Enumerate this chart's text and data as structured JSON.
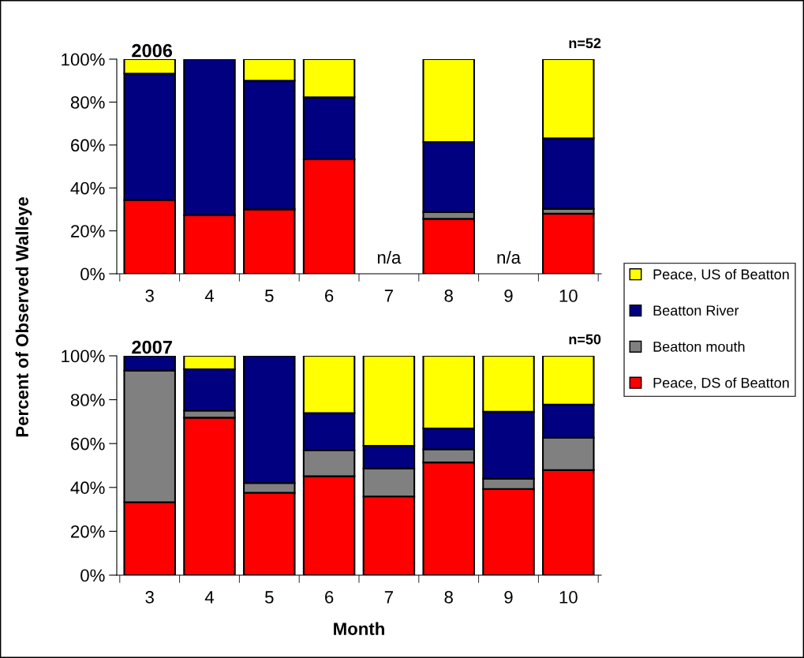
{
  "chart_data": [
    {
      "type": "bar",
      "stacked": true,
      "title": "2006",
      "ylabel": "Percent of Observed Walleye",
      "categories": [
        "3",
        "4",
        "5",
        "6",
        "7",
        "8",
        "9",
        "10"
      ],
      "series": [
        {
          "name": "Peace, DS of Beatton",
          "color": "#ff0000",
          "values": [
            34.4,
            27.3,
            30,
            53.3,
            null,
            25.6,
            null,
            28
          ]
        },
        {
          "name": "Beatton mouth",
          "color": "#808080",
          "values": [
            0,
            0,
            0,
            0,
            null,
            3.2,
            null,
            2.3
          ]
        },
        {
          "name": "Beatton River",
          "color": "#000080",
          "values": [
            58.9,
            72.7,
            60,
            28.9,
            null,
            32.6,
            null,
            32.8
          ]
        },
        {
          "name": "Peace, US of Beatton",
          "color": "#ffff00",
          "values": [
            6.7,
            0,
            10,
            17.8,
            null,
            38.6,
            null,
            36.9
          ]
        }
      ],
      "ylim": [
        0,
        100
      ],
      "yticks": [
        {
          "value": 0,
          "label": "0%"
        },
        {
          "value": 20,
          "label": "20%"
        },
        {
          "value": 40,
          "label": "40%"
        },
        {
          "value": 60,
          "label": "60%"
        },
        {
          "value": 80,
          "label": "80%"
        },
        {
          "value": 100,
          "label": "100%"
        }
      ],
      "annotations": [
        "n=52",
        "n/a",
        "n/a"
      ],
      "legend": "right",
      "grid": false
    },
    {
      "type": "bar",
      "stacked": true,
      "title": "2007",
      "xlabel": "Month",
      "categories": [
        "3",
        "4",
        "5",
        "6",
        "7",
        "8",
        "9",
        "10"
      ],
      "series": [
        {
          "color": "#ff0000",
          "values": [
            33.3,
            71.8,
            37.6,
            45.1,
            35.9,
            51.4,
            39.3,
            47.9
          ]
        },
        {
          "color": "#808080",
          "values": [
            60,
            3.2,
            4.4,
            11.8,
            12.7,
            6,
            4.7,
            14.8
          ]
        },
        {
          "color": "#000080",
          "values": [
            6.7,
            18.9,
            58,
            17,
            10.4,
            9.5,
            30.5,
            15.1
          ]
        },
        {
          "color": "#ffff00",
          "values": [
            0,
            6.1,
            0,
            26.1,
            41,
            33.1,
            25.5,
            22.2
          ]
        }
      ],
      "ylim": [
        0,
        100
      ],
      "yticks": [
        {
          "value": 0,
          "label": "0%"
        },
        {
          "value": 20,
          "label": "20%"
        },
        {
          "value": 40,
          "label": "40%"
        },
        {
          "value": 60,
          "label": "60%"
        },
        {
          "value": 80,
          "label": "80%"
        },
        {
          "value": 100,
          "label": "100%"
        }
      ],
      "annotations": [
        "n=50"
      ],
      "grid": false
    }
  ]
}
